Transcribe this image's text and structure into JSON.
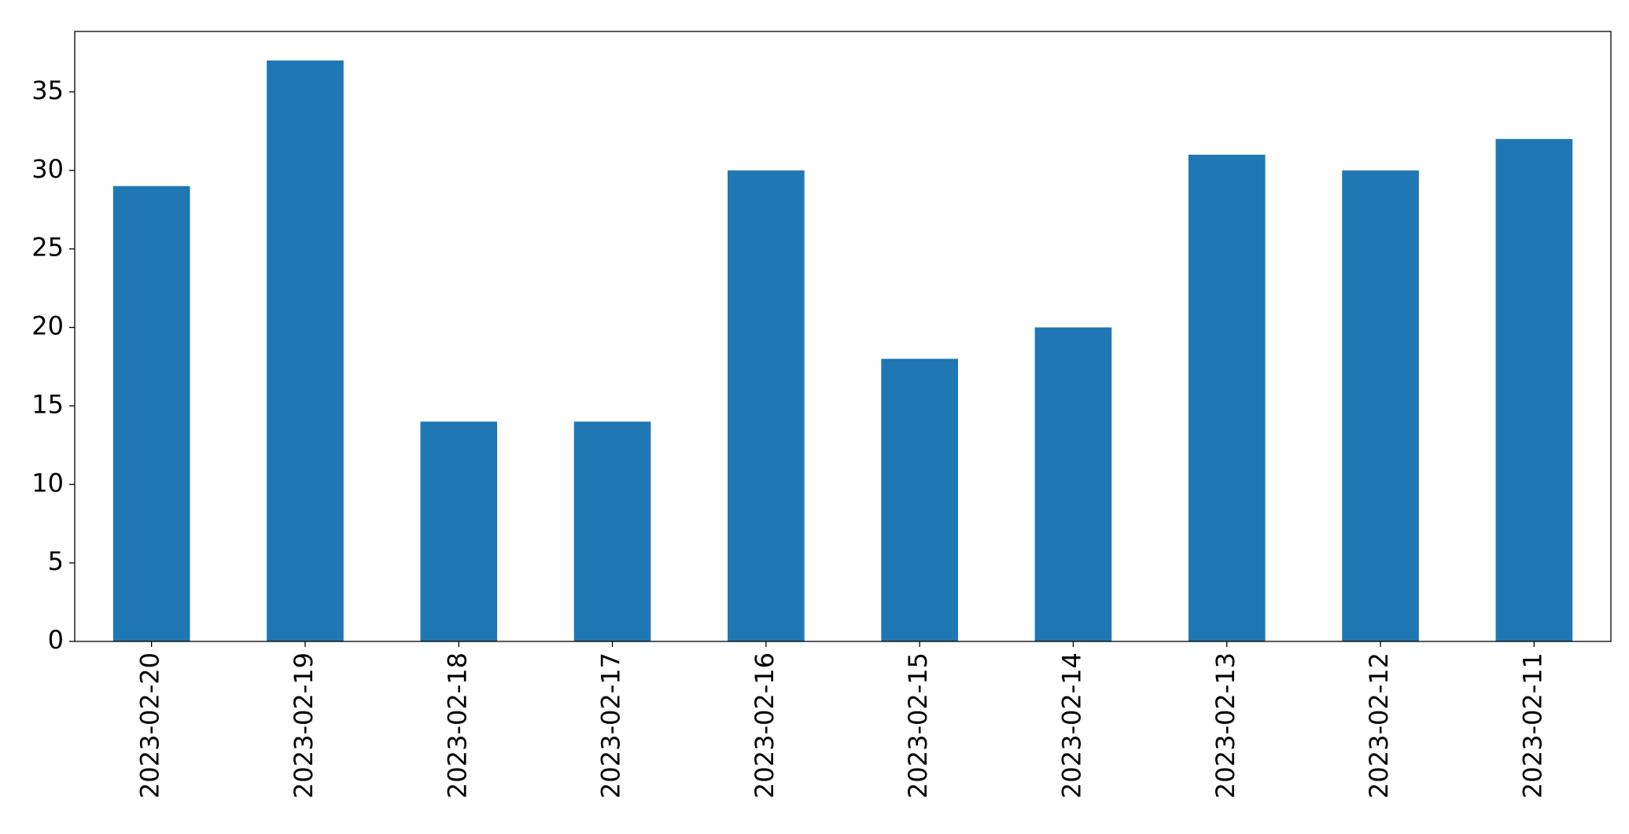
{
  "chart_data": {
    "type": "bar",
    "categories": [
      "2023-02-20",
      "2023-02-19",
      "2023-02-18",
      "2023-02-17",
      "2023-02-16",
      "2023-02-15",
      "2023-02-14",
      "2023-02-13",
      "2023-02-12",
      "2023-02-11"
    ],
    "values": [
      29,
      37,
      14,
      14,
      30,
      18,
      20,
      31,
      30,
      32
    ],
    "color": "#1f77b4",
    "ylim": [
      0,
      38.85
    ],
    "yticks": [
      0,
      5,
      10,
      15,
      20,
      25,
      30,
      35
    ],
    "grid": false
  }
}
